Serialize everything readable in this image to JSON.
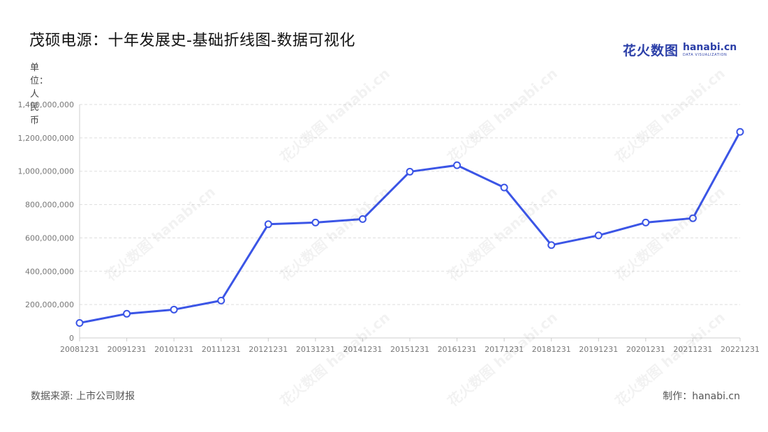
{
  "header": {
    "title": "茂硕电源：十年发展史-基础折线图-数据可视化"
  },
  "logo": {
    "mark": "花火数图",
    "name": "hanabi.cn",
    "tagline": "DATA VISUALIZATION"
  },
  "footer": {
    "source": "数据来源: 上市公司财报",
    "maker": "制作：hanabi.cn"
  },
  "colors": {
    "line": "#3b55e6",
    "grid": "#dddddd",
    "axis": "#cccccc"
  },
  "chart_data": {
    "type": "line",
    "title": "茂硕电源：十年发展史-基础折线图-数据可视化",
    "ylabel": "单位：人民币",
    "xlabel": "",
    "categories": [
      "20081231",
      "20091231",
      "20101231",
      "20111231",
      "20121231",
      "20131231",
      "20141231",
      "20151231",
      "20161231",
      "20171231",
      "20181231",
      "20191231",
      "20201231",
      "20211231",
      "20221231"
    ],
    "series": [
      {
        "values": [
          90000000,
          145000000,
          170000000,
          224000000,
          682000000,
          692000000,
          713000000,
          997000000,
          1036000000,
          902000000,
          557000000,
          615000000,
          692000000,
          718000000,
          1236000000
        ]
      }
    ],
    "ylim": [
      0,
      1400000000
    ],
    "yticks": [
      0,
      200000000,
      400000000,
      600000000,
      800000000,
      1000000000,
      1200000000,
      1400000000
    ],
    "ytick_labels": [
      "0",
      "200,000,000",
      "400,000,000",
      "600,000,000",
      "800,000,000",
      "1,000,000,000",
      "1,200,000,000",
      "1,400,000,000"
    ],
    "grid": true,
    "legend": "none"
  }
}
